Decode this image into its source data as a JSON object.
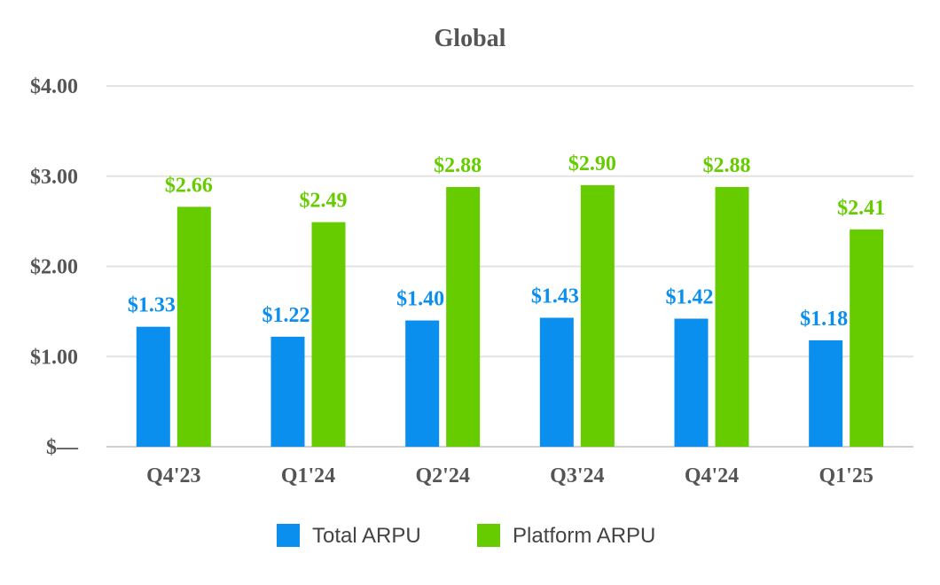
{
  "chart_data": {
    "type": "bar",
    "title": "Global",
    "categories": [
      "Q4'23",
      "Q1'24",
      "Q2'24",
      "Q3'24",
      "Q4'24",
      "Q1'25"
    ],
    "series": [
      {
        "name": "Total ARPU",
        "color": "#0a8fef",
        "values": [
          1.33,
          1.22,
          1.4,
          1.43,
          1.42,
          1.18
        ],
        "labels": [
          "$1.33",
          "$1.22",
          "$1.40",
          "$1.43",
          "$1.42",
          "$1.18"
        ]
      },
      {
        "name": "Platform ARPU",
        "color": "#66cc00",
        "values": [
          2.66,
          2.49,
          2.88,
          2.9,
          2.88,
          2.41
        ],
        "labels": [
          "$2.66",
          "$2.49",
          "$2.88",
          "$2.90",
          "$2.88",
          "$2.41"
        ]
      }
    ],
    "yticks": [
      0,
      1,
      2,
      3,
      4
    ],
    "ytick_labels": [
      "$—",
      "$1.00",
      "$2.00",
      "$3.00",
      "$4.00"
    ],
    "ylim": [
      0,
      4
    ],
    "xlabel": "",
    "ylabel": "",
    "grid": true,
    "legend": "bottom"
  }
}
